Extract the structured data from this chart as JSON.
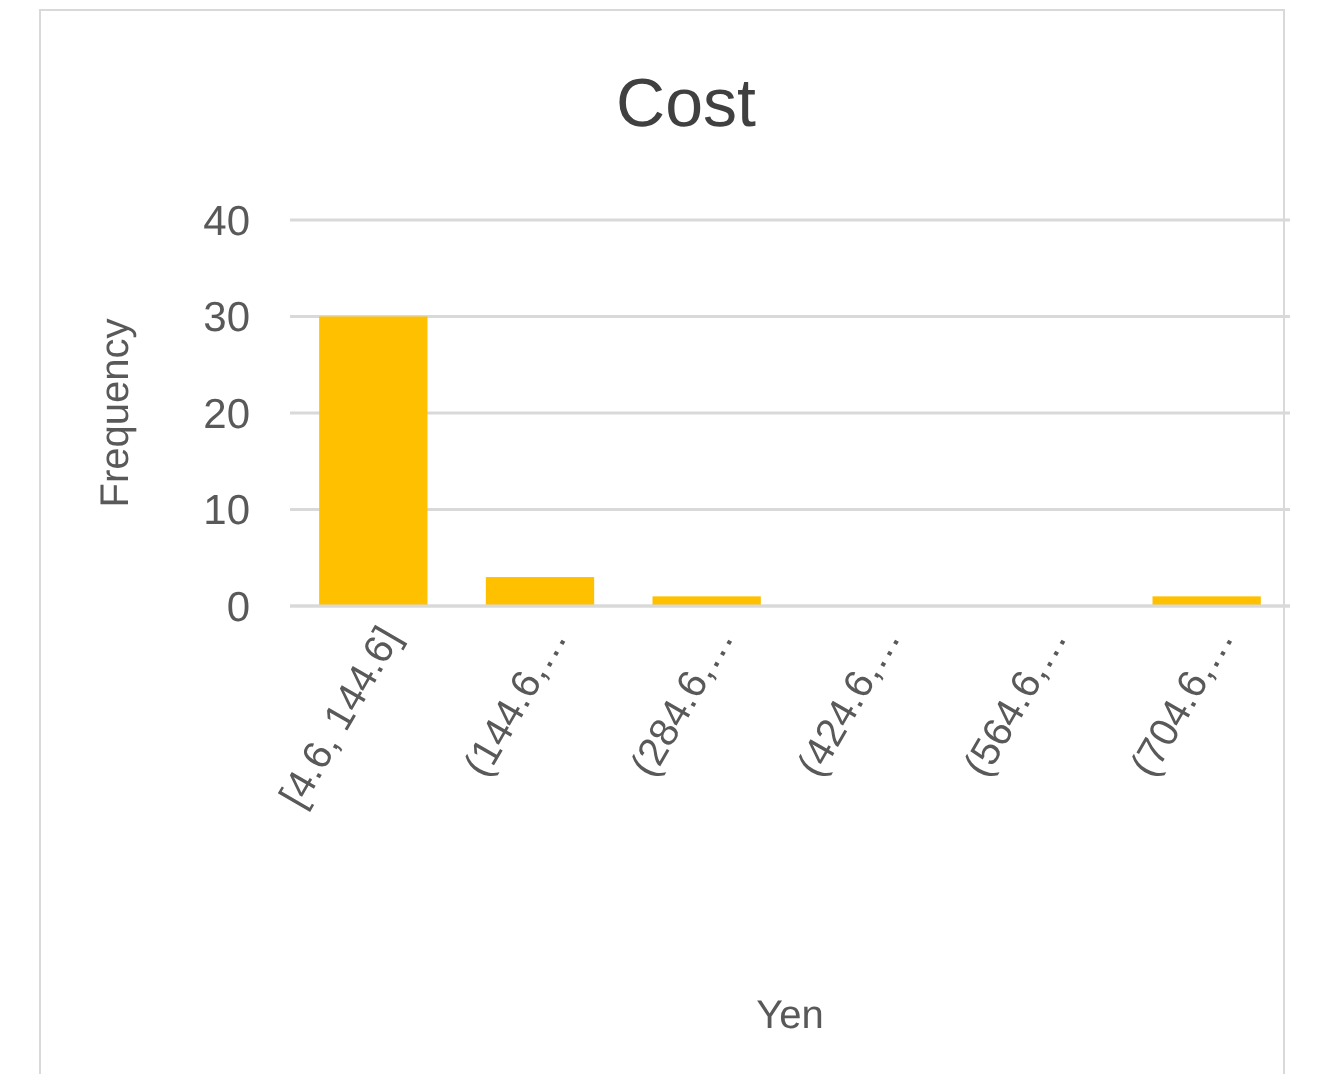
{
  "chart_data": {
    "type": "bar",
    "title": "Cost",
    "xlabel": "Yen",
    "ylabel": "Frequency",
    "categories": [
      "[4.6, 144.6]",
      "(144.6,…",
      "(284.6,…",
      "(424.6,…",
      "(564.6,…",
      "(704.6,…"
    ],
    "values": [
      30,
      3,
      1,
      0,
      0,
      1
    ],
    "color": "#ffc000",
    "ylim": [
      0,
      40
    ],
    "yticks": [
      0,
      10,
      20,
      30,
      40
    ],
    "grid": "y"
  }
}
